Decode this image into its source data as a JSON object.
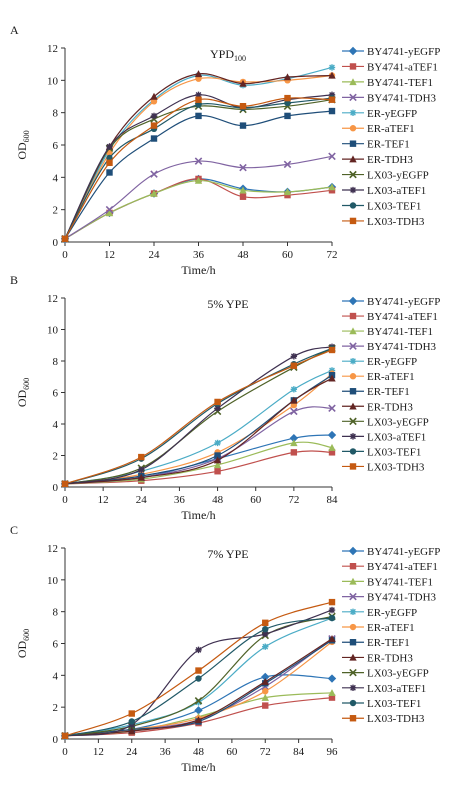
{
  "chart_data": [
    {
      "type": "line",
      "panel_label": "A",
      "annotation": "YPD",
      "annotation_sub": "100",
      "xlabel": "Time/h",
      "ylabel": "OD",
      "ylabel_sub": "600",
      "xlim": [
        0,
        72
      ],
      "ylim": [
        0,
        12
      ],
      "xticks": [
        "0",
        "12",
        "24",
        "36",
        "48",
        "60",
        "72"
      ],
      "yticks": [
        "0",
        "2",
        "4",
        "6",
        "8",
        "10",
        "12"
      ],
      "x": [
        0,
        12,
        24,
        36,
        48,
        60,
        72
      ],
      "legend_position": "right",
      "series": [
        {
          "name": "BY4741-yEGFP",
          "color": "#2e75b6",
          "marker": "diamond",
          "values": [
            0.2,
            1.8,
            3.0,
            3.9,
            3.3,
            3.1,
            3.4
          ]
        },
        {
          "name": "BY4741-aTEF1",
          "color": "#c0504d",
          "marker": "square",
          "values": [
            0.2,
            1.8,
            3.0,
            3.9,
            2.8,
            2.9,
            3.2
          ]
        },
        {
          "name": "BY4741-TEF1",
          "color": "#9bbb59",
          "marker": "triangle",
          "values": [
            0.2,
            1.8,
            3.0,
            3.8,
            3.2,
            3.1,
            3.4
          ]
        },
        {
          "name": "BY4741-TDH3",
          "color": "#8064a2",
          "marker": "x",
          "values": [
            0.2,
            2.0,
            4.2,
            5.0,
            4.6,
            4.8,
            5.3
          ]
        },
        {
          "name": "ER-yEGFP",
          "color": "#4bacc6",
          "marker": "star",
          "values": [
            0.2,
            5.7,
            8.8,
            10.3,
            9.7,
            10.1,
            10.8
          ]
        },
        {
          "name": "ER-aTEF1",
          "color": "#f79646",
          "marker": "circle",
          "values": [
            0.2,
            5.5,
            8.7,
            10.1,
            9.9,
            10.0,
            10.3
          ]
        },
        {
          "name": "ER-TEF1",
          "color": "#1f4e79",
          "marker": "square",
          "values": [
            0.2,
            4.3,
            6.4,
            7.8,
            7.2,
            7.8,
            8.1
          ]
        },
        {
          "name": "ER-TDH3",
          "color": "#632523",
          "marker": "triangle",
          "values": [
            0.2,
            5.9,
            9.0,
            10.4,
            9.8,
            10.2,
            10.3
          ]
        },
        {
          "name": "LX03-yEGFP",
          "color": "#4f6228",
          "marker": "x",
          "values": [
            0.2,
            5.8,
            7.6,
            8.4,
            8.2,
            8.4,
            8.8
          ]
        },
        {
          "name": "LX03-aTEF1",
          "color": "#3f3151",
          "marker": "star",
          "values": [
            0.2,
            5.9,
            7.8,
            9.1,
            8.3,
            8.8,
            9.1
          ]
        },
        {
          "name": "LX03-TEF1",
          "color": "#215967",
          "marker": "circle",
          "values": [
            0.2,
            5.2,
            7.0,
            8.5,
            8.3,
            8.6,
            8.9
          ]
        },
        {
          "name": "LX03-TDH3",
          "color": "#c55a11",
          "marker": "square",
          "values": [
            0.2,
            4.9,
            7.2,
            8.8,
            8.4,
            8.9,
            8.8
          ]
        }
      ]
    },
    {
      "type": "line",
      "panel_label": "B",
      "annotation": "5% YPE",
      "annotation_sub": "",
      "xlabel": "Time/h",
      "ylabel": "OD",
      "ylabel_sub": "600",
      "xlim": [
        0,
        84
      ],
      "ylim": [
        0,
        12
      ],
      "xticks": [
        "0",
        "12",
        "24",
        "36",
        "48",
        "60",
        "72",
        "84"
      ],
      "yticks": [
        "0",
        "2",
        "4",
        "6",
        "8",
        "10",
        "12"
      ],
      "x": [
        0,
        24,
        48,
        72,
        84
      ],
      "legend_position": "right",
      "series": [
        {
          "name": "BY4741-yEGFP",
          "color": "#2e75b6",
          "marker": "diamond",
          "values": [
            0.2,
            0.6,
            1.8,
            3.1,
            3.3
          ]
        },
        {
          "name": "BY4741-aTEF1",
          "color": "#c0504d",
          "marker": "square",
          "values": [
            0.2,
            0.4,
            1.0,
            2.2,
            2.2
          ]
        },
        {
          "name": "BY4741-TEF1",
          "color": "#9bbb59",
          "marker": "triangle",
          "values": [
            0.2,
            0.5,
            1.4,
            2.8,
            2.5
          ]
        },
        {
          "name": "BY4741-TDH3",
          "color": "#8064a2",
          "marker": "x",
          "values": [
            0.2,
            0.6,
            1.8,
            4.8,
            5.0
          ]
        },
        {
          "name": "ER-yEGFP",
          "color": "#4bacc6",
          "marker": "star",
          "values": [
            0.2,
            1.0,
            2.8,
            6.2,
            7.4
          ]
        },
        {
          "name": "ER-aTEF1",
          "color": "#f79646",
          "marker": "circle",
          "values": [
            0.2,
            0.8,
            2.2,
            5.2,
            7.2
          ]
        },
        {
          "name": "ER-TEF1",
          "color": "#1f4e79",
          "marker": "square",
          "values": [
            0.2,
            0.7,
            2.0,
            5.5,
            7.1
          ]
        },
        {
          "name": "ER-TDH3",
          "color": "#632523",
          "marker": "triangle",
          "values": [
            0.2,
            0.6,
            1.7,
            5.5,
            6.9
          ]
        },
        {
          "name": "LX03-yEGFP",
          "color": "#4f6228",
          "marker": "x",
          "values": [
            0.2,
            1.2,
            4.8,
            7.6,
            8.8
          ]
        },
        {
          "name": "LX03-aTEF1",
          "color": "#3f3151",
          "marker": "star",
          "values": [
            0.2,
            1.1,
            5.0,
            8.3,
            8.9
          ]
        },
        {
          "name": "LX03-TEF1",
          "color": "#215967",
          "marker": "circle",
          "values": [
            0.2,
            1.8,
            5.3,
            7.8,
            8.8
          ]
        },
        {
          "name": "LX03-TDH3",
          "color": "#c55a11",
          "marker": "square",
          "values": [
            0.2,
            1.9,
            5.4,
            7.7,
            8.7
          ]
        }
      ]
    },
    {
      "type": "line",
      "panel_label": "C",
      "annotation": "7% YPE",
      "annotation_sub": "",
      "xlabel": "Time/h",
      "ylabel": "OD",
      "ylabel_sub": "600",
      "xlim": [
        0,
        96
      ],
      "ylim": [
        0,
        12
      ],
      "xticks": [
        "0",
        "12",
        "24",
        "36",
        "48",
        "60",
        "72",
        "84",
        "96"
      ],
      "yticks": [
        "0",
        "2",
        "4",
        "6",
        "8",
        "10",
        "12"
      ],
      "x": [
        0,
        24,
        48,
        72,
        96
      ],
      "legend_position": "right",
      "series": [
        {
          "name": "BY4741-yEGFP",
          "color": "#2e75b6",
          "marker": "diamond",
          "values": [
            0.2,
            0.6,
            1.8,
            3.9,
            3.8
          ]
        },
        {
          "name": "BY4741-aTEF1",
          "color": "#c0504d",
          "marker": "square",
          "values": [
            0.2,
            0.4,
            1.0,
            2.1,
            2.6
          ]
        },
        {
          "name": "BY4741-TEF1",
          "color": "#9bbb59",
          "marker": "triangle",
          "values": [
            0.2,
            0.5,
            1.4,
            2.6,
            2.9
          ]
        },
        {
          "name": "BY4741-TDH3",
          "color": "#8064a2",
          "marker": "x",
          "values": [
            0.2,
            0.6,
            1.2,
            3.3,
            6.3
          ]
        },
        {
          "name": "ER-yEGFP",
          "color": "#4bacc6",
          "marker": "star",
          "values": [
            0.2,
            0.9,
            2.3,
            5.8,
            7.6
          ]
        },
        {
          "name": "ER-aTEF1",
          "color": "#f79646",
          "marker": "circle",
          "values": [
            0.2,
            0.6,
            1.3,
            3.0,
            6.1
          ]
        },
        {
          "name": "ER-TEF1",
          "color": "#1f4e79",
          "marker": "square",
          "values": [
            0.2,
            0.6,
            1.1,
            3.5,
            6.2
          ]
        },
        {
          "name": "ER-TDH3",
          "color": "#632523",
          "marker": "triangle",
          "values": [
            0.2,
            0.5,
            1.2,
            3.6,
            6.3
          ]
        },
        {
          "name": "LX03-yEGFP",
          "color": "#4f6228",
          "marker": "x",
          "values": [
            0.2,
            0.8,
            2.4,
            6.5,
            7.7
          ]
        },
        {
          "name": "LX03-aTEF1",
          "color": "#3f3151",
          "marker": "star",
          "values": [
            0.2,
            0.9,
            5.6,
            6.6,
            8.1
          ]
        },
        {
          "name": "LX03-TEF1",
          "color": "#215967",
          "marker": "circle",
          "values": [
            0.2,
            1.1,
            3.8,
            6.9,
            7.6
          ]
        },
        {
          "name": "LX03-TDH3",
          "color": "#c55a11",
          "marker": "square",
          "values": [
            0.2,
            1.6,
            4.3,
            7.3,
            8.6
          ]
        }
      ]
    }
  ]
}
